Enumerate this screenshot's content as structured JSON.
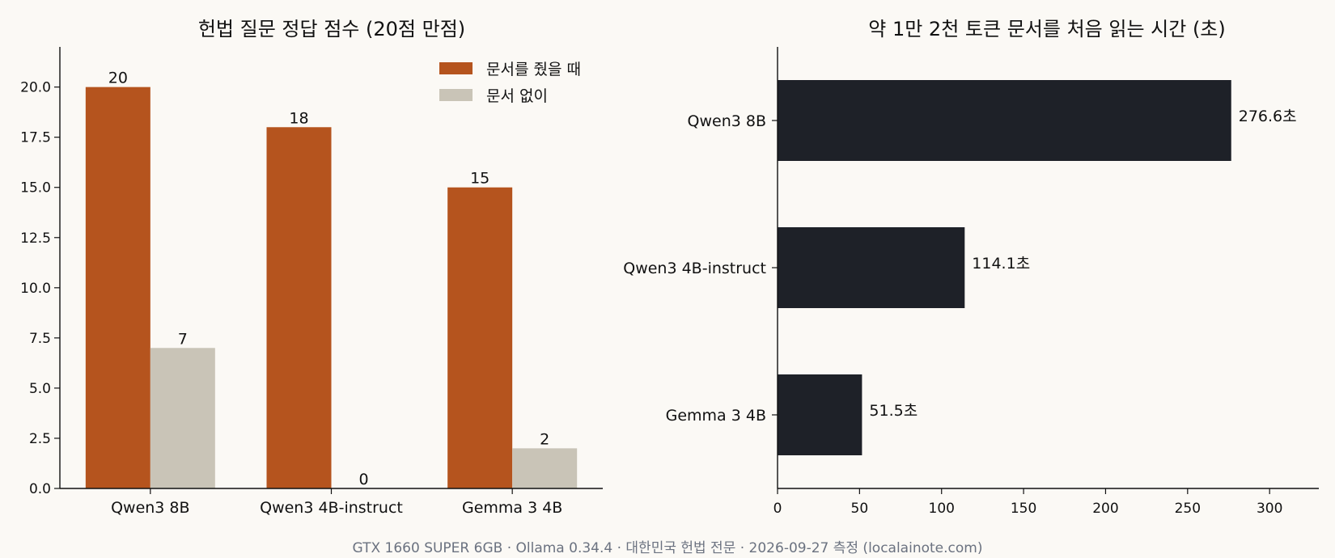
{
  "footer": "GTX 1660 SUPER 6GB · Ollama 0.34.4 · 대한민국 헌법 전문 · 2026-09-27 측정 (localainote.com)",
  "colors": {
    "with_doc": "#b5541e",
    "without_doc": "#c9c4b7",
    "time_bar": "#1e2128",
    "background": "#fbf9f5"
  },
  "chart_data": [
    {
      "type": "bar",
      "title": "헌법 질문 정답 점수 (20점 만점)",
      "categories": [
        "Qwen3 8B",
        "Qwen3 4B-instruct",
        "Gemma 3 4B"
      ],
      "series": [
        {
          "name": "문서를 줬을 때",
          "values": [
            20,
            18,
            15
          ]
        },
        {
          "name": "문서 없이",
          "values": [
            7,
            0,
            2
          ]
        }
      ],
      "ylim": [
        0,
        22
      ],
      "yticks": [
        "0.0",
        "2.5",
        "5.0",
        "7.5",
        "10.0",
        "12.5",
        "15.0",
        "17.5",
        "20.0"
      ],
      "legend": "top-right",
      "grid": false
    },
    {
      "type": "bar",
      "orientation": "horizontal",
      "title": "약 1만 2천 토큰 문서를 처음 읽는 시간 (초)",
      "categories": [
        "Qwen3 8B",
        "Qwen3 4B-instruct",
        "Gemma 3 4B"
      ],
      "values": [
        276.6,
        114.1,
        51.5
      ],
      "value_labels": [
        "276.6초",
        "114.1초",
        "51.5초"
      ],
      "xlim": [
        0,
        330
      ],
      "xticks": [
        "0",
        "50",
        "100",
        "150",
        "200",
        "250",
        "300"
      ],
      "grid": false
    }
  ]
}
